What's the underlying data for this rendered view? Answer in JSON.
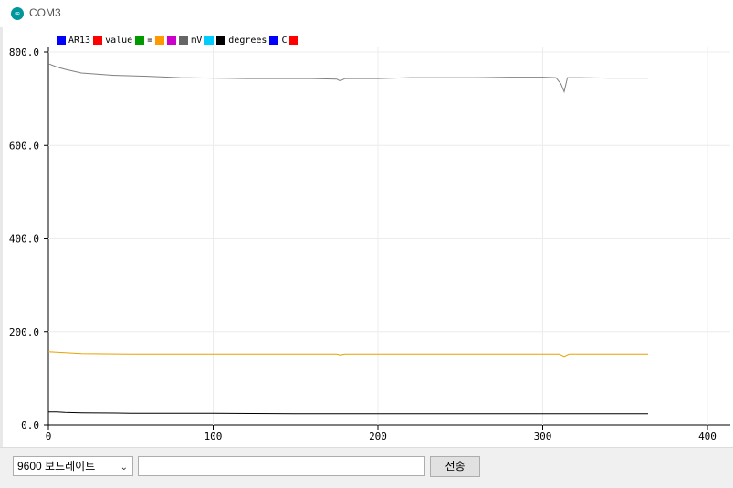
{
  "window": {
    "title": "COM3",
    "icon": "arduino-icon"
  },
  "legend": [
    {
      "label": "AR13",
      "color": "#0000ff"
    },
    {
      "label": "value",
      "color": "#ff0000"
    },
    {
      "label": "=",
      "color": "#009900"
    },
    {
      "label": "",
      "color": "#ff9900"
    },
    {
      "label": "",
      "color": "#cc00cc"
    },
    {
      "label": "mV",
      "color": "#666666"
    },
    {
      "label": "",
      "color": "#00ccff"
    },
    {
      "label": "degrees",
      "color": "#000000"
    },
    {
      "label": "C",
      "color": "#0000ff"
    },
    {
      "label": "",
      "color": "#ff0000"
    }
  ],
  "chart_data": {
    "type": "line",
    "xlim": [
      0,
      400
    ],
    "ylim": [
      0,
      800
    ],
    "xticks": [
      "0",
      "100",
      "200",
      "300",
      "400"
    ],
    "yticks": [
      "0.0",
      "200.0",
      "400.0",
      "600.0",
      "800.0"
    ],
    "grid": true,
    "legend_position": "top-left",
    "series": [
      {
        "color": "#808080",
        "x": [
          0,
          5,
          10,
          20,
          40,
          60,
          80,
          100,
          120,
          140,
          160,
          175,
          177,
          180,
          200,
          220,
          240,
          260,
          280,
          300,
          308,
          311,
          313,
          315,
          320,
          340,
          364
        ],
        "y": [
          775,
          768,
          763,
          755,
          750,
          748,
          745,
          744,
          743,
          743,
          743,
          742,
          738,
          743,
          743,
          745,
          745,
          745,
          746,
          746,
          745,
          732,
          715,
          745,
          745,
          744,
          744
        ]
      },
      {
        "color": "#e8a200",
        "x": [
          0,
          5,
          10,
          20,
          50,
          100,
          150,
          175,
          177,
          180,
          200,
          250,
          300,
          310,
          313,
          316,
          330,
          364
        ],
        "y": [
          157,
          156,
          155,
          153,
          152,
          152,
          152,
          152,
          150,
          152,
          152,
          152,
          152,
          152,
          147,
          152,
          152,
          152
        ]
      },
      {
        "color": "#000000",
        "x": [
          0,
          5,
          10,
          20,
          50,
          100,
          150,
          175,
          200,
          250,
          300,
          330,
          364
        ],
        "y": [
          28,
          28,
          27,
          26,
          25,
          25,
          24,
          24,
          24,
          24,
          24,
          24,
          24
        ]
      }
    ]
  },
  "bottom": {
    "baud": "9600 보드레이트",
    "send_value": "",
    "send_label": "전송"
  }
}
